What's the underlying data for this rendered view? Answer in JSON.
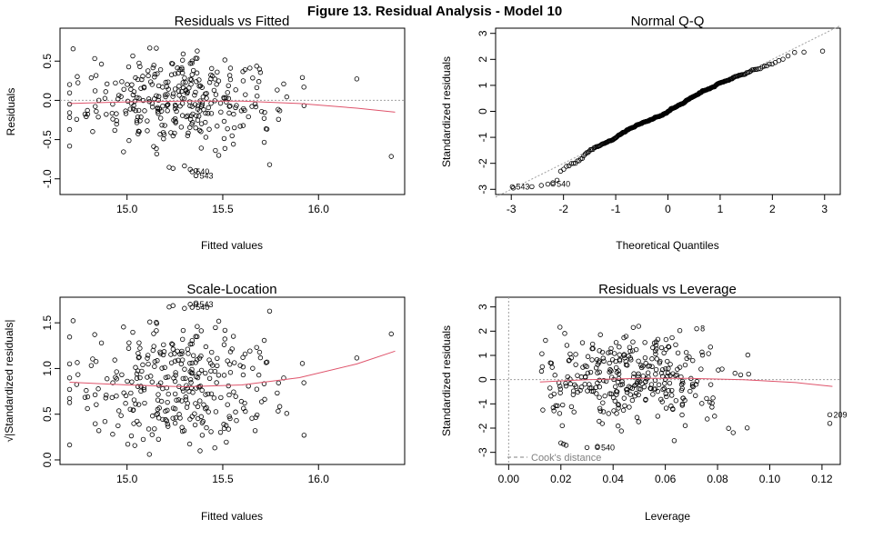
{
  "figure_title": "Figure 13. Residual Analysis - Model 10",
  "colors": {
    "points": "#000000",
    "smooth": "#DF536B",
    "reference": "#A0A0A0"
  },
  "chart_data": [
    {
      "type": "scatter",
      "title": "Residuals vs Fitted",
      "xlabel": "Fitted values",
      "ylabel": "Residuals",
      "xlim": [
        14.65,
        16.45
      ],
      "ylim": [
        -1.2,
        0.92
      ],
      "xticks": [
        15.0,
        15.5,
        16.0
      ],
      "xtick_labels": [
        "15.0",
        "15.5",
        "16.0"
      ],
      "yticks": [
        -1.0,
        -0.5,
        0.0,
        0.5
      ],
      "ytick_labels": [
        "-1.0",
        "-0.5",
        "0.0",
        "0.5"
      ],
      "reference_line": {
        "y": 0,
        "style": "dotted"
      },
      "smooth": {
        "x": [
          14.7,
          15.0,
          15.3,
          15.6,
          15.9,
          16.2,
          16.4
        ],
        "y": [
          -0.04,
          -0.02,
          -0.01,
          -0.01,
          -0.04,
          -0.1,
          -0.15
        ]
      },
      "labeled_points": [
        {
          "label": "540",
          "x": 15.34,
          "y": -0.91
        },
        {
          "label": "543",
          "x": 15.36,
          "y": -0.96
        }
      ]
    },
    {
      "type": "scatter",
      "title": "Normal Q-Q",
      "xlabel": "Theoretical Quantiles",
      "ylabel": "Standardized residuals",
      "xlim": [
        -3.3,
        3.3
      ],
      "ylim": [
        -3.2,
        3.2
      ],
      "xticks": [
        -3,
        -2,
        -1,
        0,
        1,
        2,
        3
      ],
      "xtick_labels": [
        "-3",
        "-2",
        "-1",
        "0",
        "1",
        "2",
        "3"
      ],
      "yticks": [
        -3,
        -2,
        -1,
        0,
        1,
        2,
        3
      ],
      "ytick_labels": [
        "-3",
        "-2",
        "-1",
        "0",
        "1",
        "2",
        "3"
      ],
      "reference_line": {
        "slope": 1,
        "intercept": 0,
        "style": "dotted"
      },
      "labeled_points": [
        {
          "label": "543",
          "x": -2.98,
          "y": -2.9
        },
        {
          "label": "540",
          "x": -2.2,
          "y": -2.8
        }
      ]
    },
    {
      "type": "scatter",
      "title": "Scale-Location",
      "xlabel": "Fitted values",
      "ylabel": "√|Standardized residuals|",
      "xlim": [
        14.65,
        16.45
      ],
      "ylim": [
        -0.05,
        1.78
      ],
      "xticks": [
        15.0,
        15.5,
        16.0
      ],
      "xtick_labels": [
        "15.0",
        "15.5",
        "16.0"
      ],
      "yticks": [
        0.0,
        0.5,
        1.0,
        1.5
      ],
      "ytick_labels": [
        "0.0",
        "0.5",
        "1.0",
        "1.5"
      ],
      "smooth": {
        "x": [
          14.7,
          15.0,
          15.3,
          15.6,
          15.9,
          16.2,
          16.4
        ],
        "y": [
          0.85,
          0.82,
          0.8,
          0.82,
          0.9,
          1.05,
          1.19
        ]
      },
      "labeled_points": [
        {
          "label": "543",
          "x": 15.36,
          "y": 1.7
        },
        {
          "label": "540",
          "x": 15.34,
          "y": 1.67
        }
      ]
    },
    {
      "type": "scatter",
      "title": "Residuals vs Leverage",
      "xlabel": "Leverage",
      "ylabel": "Standardized residuals",
      "xlim": [
        -0.005,
        0.127
      ],
      "ylim": [
        -3.5,
        3.4
      ],
      "xticks": [
        0.0,
        0.02,
        0.04,
        0.06,
        0.08,
        0.1,
        0.12
      ],
      "xtick_labels": [
        "0.00",
        "0.02",
        "0.04",
        "0.06",
        "0.08",
        "0.10",
        "0.12"
      ],
      "yticks": [
        -3,
        -2,
        -1,
        0,
        1,
        2,
        3
      ],
      "ytick_labels": [
        "-3",
        "-2",
        "-1",
        "0",
        "1",
        "2",
        "3"
      ],
      "reference_line": {
        "y": 0,
        "x": 0,
        "style": "dotted"
      },
      "smooth": {
        "x": [
          0.012,
          0.03,
          0.05,
          0.07,
          0.09,
          0.11,
          0.124
        ],
        "y": [
          -0.1,
          0.0,
          0.05,
          0.05,
          0.0,
          -0.12,
          -0.28
        ]
      },
      "legend": {
        "label": "Cook's distance",
        "position": "bottom-left"
      },
      "labeled_points": [
        {
          "label": "8",
          "x": 0.072,
          "y": 2.1
        },
        {
          "label": "209",
          "x": 0.123,
          "y": -1.45
        },
        {
          "label": "540",
          "x": 0.034,
          "y": -2.8
        }
      ]
    }
  ]
}
